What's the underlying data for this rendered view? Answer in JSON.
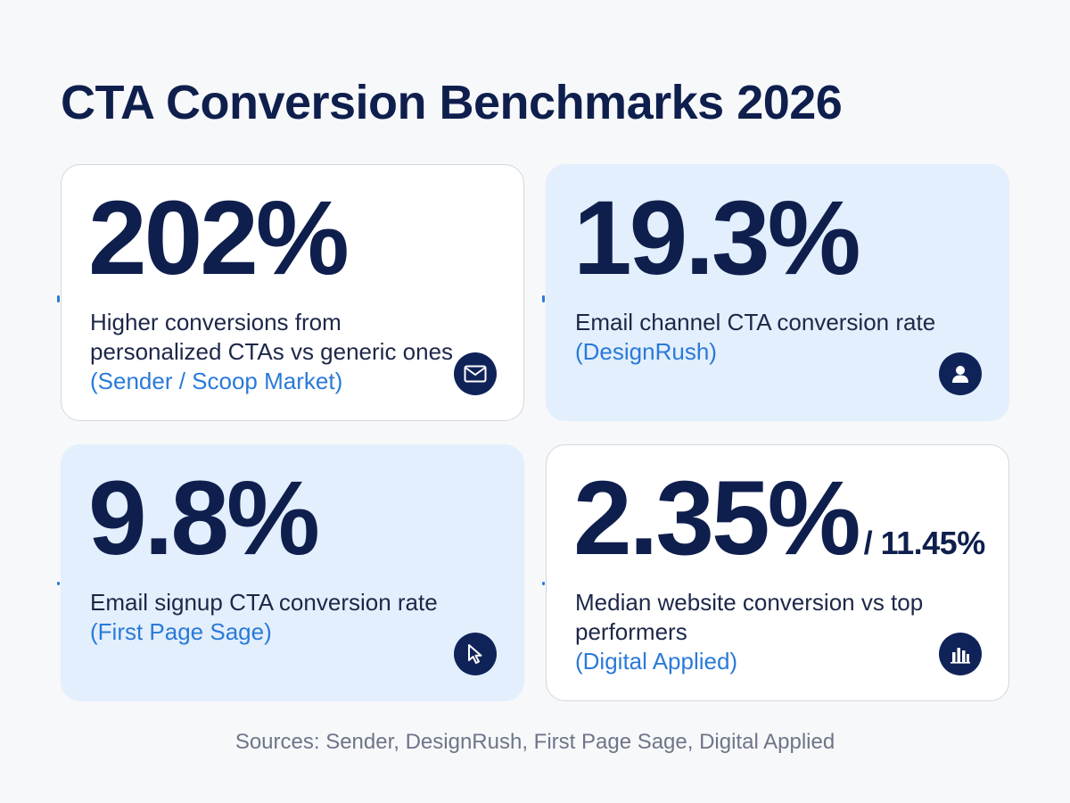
{
  "title": "CTA Conversion Benchmarks 2026",
  "cards": [
    {
      "stat": "202%",
      "stat_secondary": "",
      "description": "Higher conversions from personalized CTAs vs generic ones",
      "source": "(Sender / Scoop Market)",
      "icon": "envelope-icon",
      "style": "white"
    },
    {
      "stat": "19.3%",
      "stat_secondary": "",
      "description": "Email channel CTA conversion rate",
      "source": "(DesignRush)",
      "icon": "user-icon",
      "style": "blue"
    },
    {
      "stat": "9.8%",
      "stat_secondary": "",
      "description": "Email signup CTA conversion rate",
      "source": "(First Page Sage)",
      "icon": "cursor-icon",
      "style": "blue"
    },
    {
      "stat": "2.35%",
      "stat_secondary": "/ 11.45%",
      "description": "Median website conversion vs top performers",
      "source": "(Digital Applied)",
      "icon": "bar-chart-icon",
      "style": "white"
    }
  ],
  "footer": "Sources: Sender, DesignRush, First Page Sage, Digital Applied",
  "colors": {
    "navy": "#0f1f4d",
    "accent_blue": "#2a7ad8",
    "card_blue": "#e3effc",
    "background": "#f7f8fa"
  }
}
